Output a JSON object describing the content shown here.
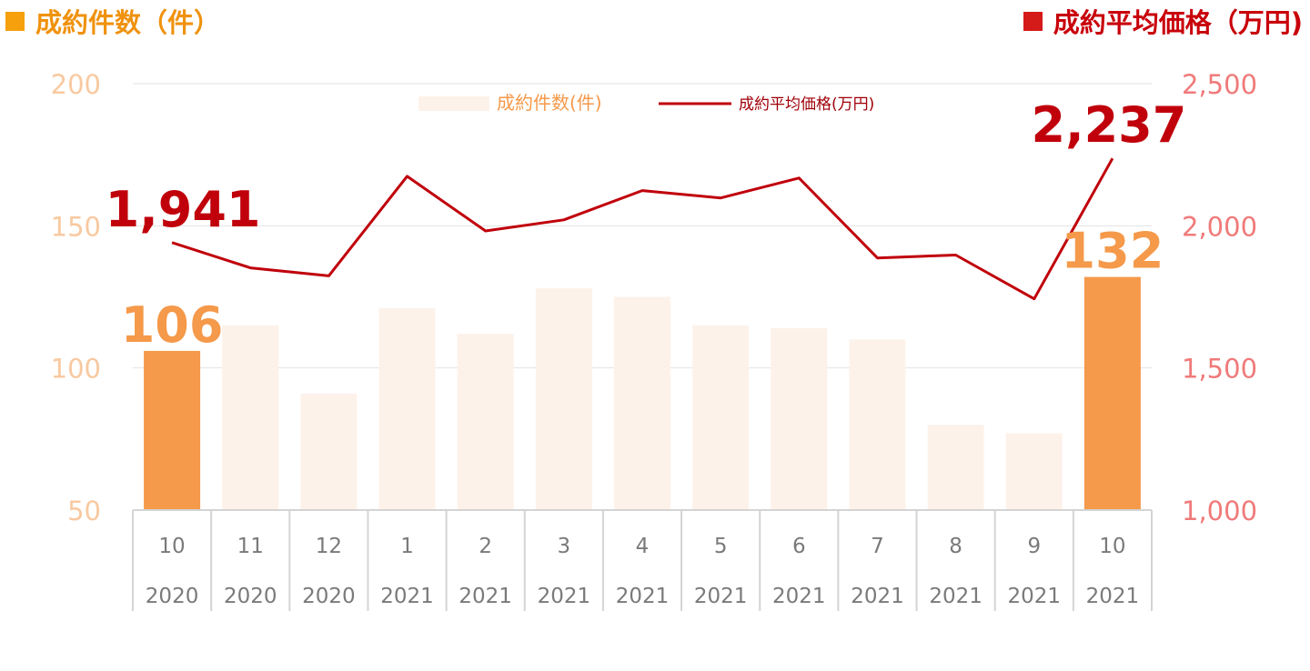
{
  "titles": {
    "left": "成約件数（件）",
    "right": "成約平均価格（万円)"
  },
  "colors": {
    "bar_highlight": "#f5994a",
    "bar_normal": "#fdf2ea",
    "line": "#c0000b",
    "axis_left": "#f8c9a0",
    "axis_right": "#f07a7a",
    "label_bar": "#f5994a",
    "label_line": "#c0000b",
    "gridline": "#e2e2e2",
    "category_text": "#7a7a7a"
  },
  "chart_data": {
    "type": "bar+line",
    "categories": [
      {
        "month": "10",
        "year": "2020"
      },
      {
        "month": "11",
        "year": "2020"
      },
      {
        "month": "12",
        "year": "2020"
      },
      {
        "month": "1",
        "year": "2021"
      },
      {
        "month": "2",
        "year": "2021"
      },
      {
        "month": "3",
        "year": "2021"
      },
      {
        "month": "4",
        "year": "2021"
      },
      {
        "month": "5",
        "year": "2021"
      },
      {
        "month": "6",
        "year": "2021"
      },
      {
        "month": "7",
        "year": "2021"
      },
      {
        "month": "8",
        "year": "2021"
      },
      {
        "month": "9",
        "year": "2021"
      },
      {
        "month": "10",
        "year": "2021"
      }
    ],
    "series": [
      {
        "name": "成約件数(件)",
        "type": "bar",
        "axis": "left",
        "values": [
          106,
          115,
          91,
          121,
          112,
          128,
          125,
          115,
          114,
          110,
          80,
          77,
          132
        ],
        "highlight_indices": [
          0,
          12
        ]
      },
      {
        "name": "成約平均価格(万円)",
        "type": "line",
        "axis": "right",
        "values": [
          1941,
          1852,
          1824,
          2174,
          1982,
          2021,
          2124,
          2098,
          2168,
          1887,
          1897,
          1743,
          2237
        ]
      }
    ],
    "y_left": {
      "min": 50,
      "max": 200,
      "ticks": [
        "50",
        "100",
        "150",
        "200"
      ]
    },
    "y_right": {
      "min": 1000,
      "max": 2500,
      "ticks": [
        "1,000",
        "1,500",
        "2,000",
        "2,500"
      ]
    },
    "gridlines": true,
    "legend_position": "top-center",
    "data_labels": [
      {
        "series": 0,
        "index": 0,
        "text": "106"
      },
      {
        "series": 0,
        "index": 12,
        "text": "132"
      },
      {
        "series": 1,
        "index": 0,
        "text": "1,941"
      },
      {
        "series": 1,
        "index": 12,
        "text": "2,237"
      }
    ]
  }
}
